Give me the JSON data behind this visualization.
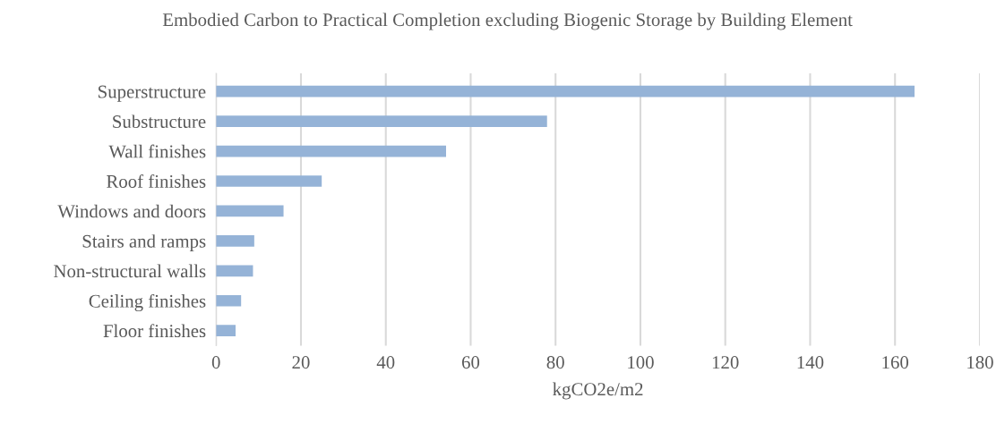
{
  "chart_data": {
    "type": "bar",
    "orientation": "horizontal",
    "title": "Embodied Carbon to Practical Completion excluding Biogenic Storage by Building Element",
    "xlabel": "kgCO2e/m2",
    "categories": [
      "Superstructure",
      "Substructure",
      "Wall finishes",
      "Roof finishes",
      "Windows and doors",
      "Stairs and ramps",
      "Non-structural walls",
      "Ceiling finishes",
      "Floor finishes"
    ],
    "values": [
      164.6,
      78,
      54.2,
      24.9,
      15.9,
      9.0,
      8.7,
      5.9,
      4.6
    ],
    "color": "#95b3d7",
    "xlim": [
      0,
      180
    ],
    "xticks": [
      0,
      20,
      40,
      60,
      80,
      100,
      120,
      140,
      160,
      180
    ],
    "grid": "x",
    "legend": false
  }
}
